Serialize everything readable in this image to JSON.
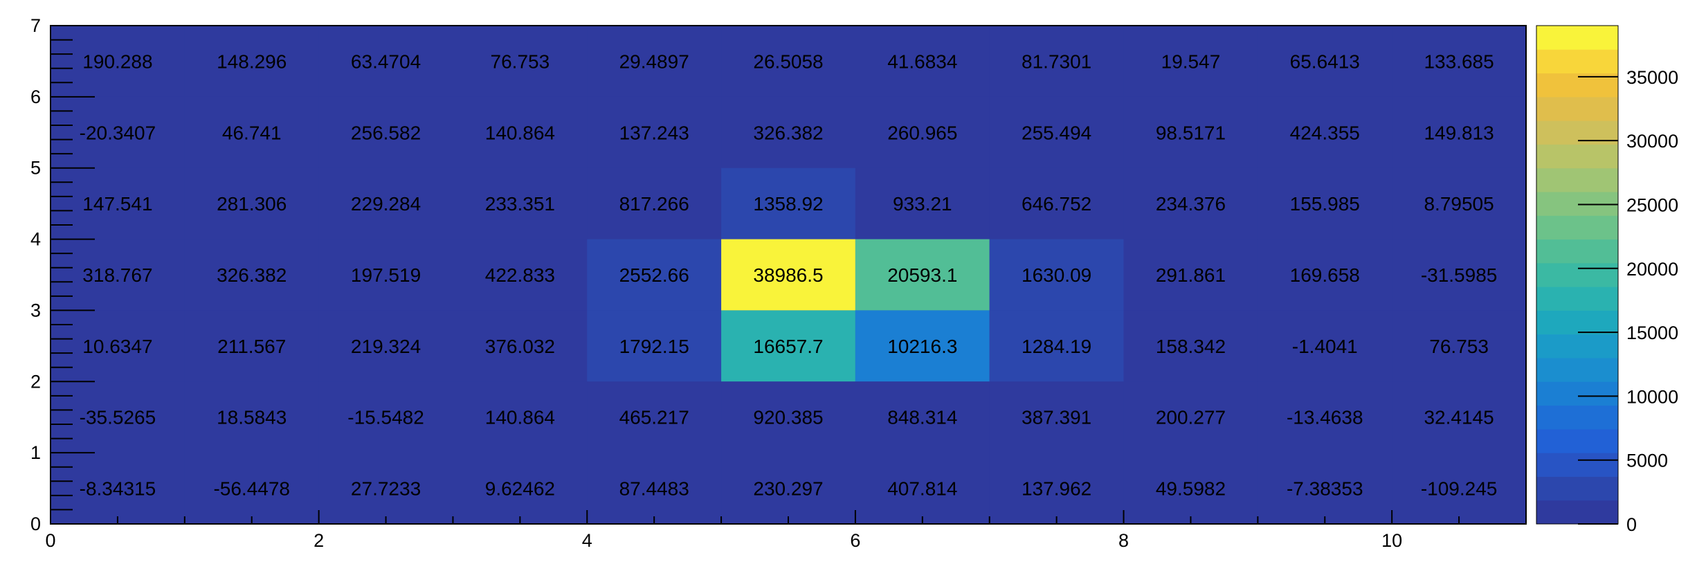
{
  "chart_data": {
    "type": "heatmap",
    "title": "",
    "xlabel": "",
    "ylabel": "",
    "x_edges": [
      0,
      1,
      2,
      3,
      4,
      5,
      6,
      7,
      8,
      9,
      10,
      11
    ],
    "y_edges": [
      0,
      1,
      2,
      3,
      4,
      5,
      6,
      7
    ],
    "xlim": [
      0,
      11
    ],
    "ylim": [
      0,
      7
    ],
    "x_tick_labels": [
      "0",
      "2",
      "4",
      "6",
      "8",
      "10"
    ],
    "y_tick_labels": [
      "0",
      "1",
      "2",
      "3",
      "4",
      "5",
      "6",
      "7"
    ],
    "values_by_row_top_to_bottom": [
      [
        190.288,
        148.296,
        63.4704,
        76.753,
        29.4897,
        26.5058,
        41.6834,
        81.7301,
        19.547,
        65.6413,
        133.685
      ],
      [
        -20.3407,
        46.741,
        256.582,
        140.864,
        137.243,
        326.382,
        260.965,
        255.494,
        98.5171,
        424.355,
        149.813
      ],
      [
        147.541,
        281.306,
        229.284,
        233.351,
        817.266,
        1358.92,
        933.21,
        646.752,
        234.376,
        155.985,
        8.79505
      ],
      [
        318.767,
        326.382,
        197.519,
        422.833,
        2552.66,
        38986.5,
        20593.1,
        1630.09,
        291.861,
        169.658,
        -31.5985
      ],
      [
        10.6347,
        211.567,
        219.324,
        376.032,
        1792.15,
        16657.7,
        10216.3,
        1284.19,
        158.342,
        -1.4041,
        76.753
      ],
      [
        -35.5265,
        18.5843,
        -15.5482,
        140.864,
        465.217,
        920.385,
        848.314,
        387.391,
        200.277,
        -13.4638,
        32.4145
      ],
      [
        -8.34315,
        -56.4478,
        27.7233,
        9.62462,
        87.4483,
        230.297,
        407.814,
        137.962,
        49.5982,
        -7.38353,
        -109.245
      ]
    ],
    "cell_labels_top_to_bottom": [
      [
        "190.288",
        "148.296",
        "63.4704",
        "76.753",
        "29.4897",
        "26.5058",
        "41.6834",
        "81.7301",
        "19.547",
        "65.6413",
        "133.685"
      ],
      [
        "-20.3407",
        "46.741",
        "256.582",
        "140.864",
        "137.243",
        "326.382",
        "260.965",
        "255.494",
        "98.5171",
        "424.355",
        "149.813"
      ],
      [
        "147.541",
        "281.306",
        "229.284",
        "233.351",
        "817.266",
        "1358.92",
        "933.21",
        "646.752",
        "234.376",
        "155.985",
        "8.79505"
      ],
      [
        "318.767",
        "326.382",
        "197.519",
        "422.833",
        "2552.66",
        "38986.5",
        "20593.1",
        "1630.09",
        "291.861",
        "169.658",
        "-31.5985"
      ],
      [
        "10.6347",
        "211.567",
        "219.324",
        "376.032",
        "1792.15",
        "16657.7",
        "10216.3",
        "1284.19",
        "158.342",
        "-1.4041",
        "76.753"
      ],
      [
        "-35.5265",
        "18.5843",
        "-15.5482",
        "140.864",
        "465.217",
        "920.385",
        "848.314",
        "387.391",
        "200.277",
        "-13.4638",
        "32.4145"
      ],
      [
        "-8.34315",
        "-56.4478",
        "27.7233",
        "9.62462",
        "87.4483",
        "230.297",
        "407.814",
        "137.962",
        "49.5982",
        "-7.38353",
        "-109.245"
      ]
    ],
    "colorbar": {
      "range": [
        0,
        39000
      ],
      "levels": 20,
      "tick_values": [
        0,
        5000,
        10000,
        15000,
        20000,
        25000,
        30000,
        35000
      ],
      "tick_labels": [
        "0",
        "5000",
        "10000",
        "15000",
        "20000",
        "25000",
        "30000",
        "35000"
      ],
      "palette": [
        "#2f3a9e",
        "#2c47ad",
        "#2854c4",
        "#2261d6",
        "#1e6fd6",
        "#1b7fd3",
        "#1b8ecf",
        "#1b9bc8",
        "#1ea8bd",
        "#2ab2b0",
        "#3bb9a3",
        "#52be96",
        "#6cc28a",
        "#86c47f",
        "#a0c574",
        "#b8c468",
        "#cec05c",
        "#e0be4c",
        "#f0c23c",
        "#f8d63a",
        "#f9f33a"
      ]
    },
    "grid": false,
    "legend": "colorbar-right"
  }
}
